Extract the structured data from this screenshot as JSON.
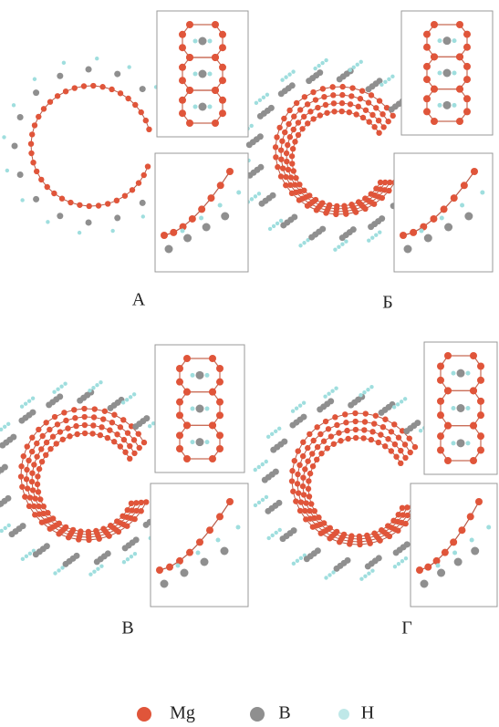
{
  "panels": [
    {
      "label": "А"
    },
    {
      "label": "Б"
    },
    {
      "label": "В"
    },
    {
      "label": "Г"
    }
  ],
  "legend": [
    {
      "label": "Mg"
    },
    {
      "label": "B"
    },
    {
      "label": "H"
    }
  ]
}
